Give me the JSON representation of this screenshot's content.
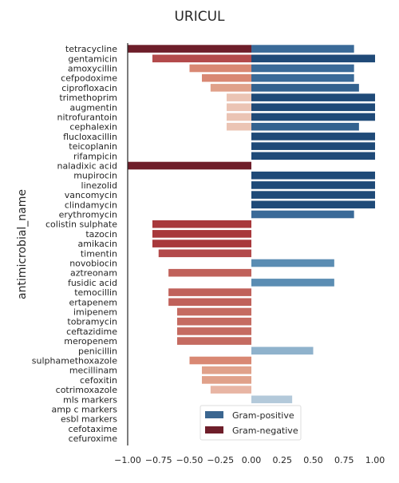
{
  "chart_data": {
    "type": "bar",
    "orientation": "horizontal",
    "title": "URICUL",
    "xlabel": "",
    "ylabel": "antimicrobial_name",
    "xlim": [
      -1.0,
      1.0
    ],
    "x_ticks": [
      "−1.00",
      "−0.75",
      "−0.50",
      "−0.25",
      "0.00",
      "0.25",
      "0.50",
      "0.75",
      "1.00"
    ],
    "x_tick_values": [
      -1.0,
      -0.75,
      -0.5,
      -0.25,
      0.0,
      0.25,
      0.5,
      0.75,
      1.0
    ],
    "grid": false,
    "legend_position": "lower-center",
    "legend": [
      {
        "label": "Gram-positive",
        "color": "#3b6690"
      },
      {
        "label": "Gram-negative",
        "color": "#6e1e2a"
      }
    ],
    "categories": [
      "tetracycline",
      "gentamicin",
      "amoxycillin",
      "cefpodoxime",
      "ciprofloxacin",
      "trimethoprim",
      "augmentin",
      "nitrofurantoin",
      "cephalexin",
      "flucloxacillin",
      "teicoplanin",
      "rifampicin",
      "naladixic acid",
      "mupirocin",
      "linezolid",
      "vancomycin",
      "clindamycin",
      "erythromycin",
      "colistin sulphate",
      "tazocin",
      "amikacin",
      "timentin",
      "novobiocin",
      "aztreonam",
      "fusidic acid",
      "temocillin",
      "ertapenem",
      "imipenem",
      "tobramycin",
      "ceftazidime",
      "meropenem",
      "penicillin",
      "sulphamethoxazole",
      "mecillinam",
      "cefoxitin",
      "cotrimoxazole",
      "mls markers",
      "amp c markers",
      "esbl markers",
      "cefotaxime",
      "cefuroxime"
    ],
    "series": [
      {
        "name": "Gram-positive",
        "values": [
          0.83,
          1.0,
          0.83,
          0.83,
          0.87,
          1.0,
          1.0,
          1.0,
          0.87,
          1.0,
          1.0,
          1.0,
          null,
          1.0,
          1.0,
          1.0,
          1.0,
          0.83,
          null,
          null,
          null,
          null,
          0.67,
          null,
          0.67,
          null,
          null,
          null,
          null,
          null,
          null,
          0.5,
          null,
          null,
          null,
          null,
          0.33,
          null,
          null,
          null,
          null
        ],
        "colors": [
          "#3a6a98",
          "#1f4a78",
          "#3a6a98",
          "#3a6a98",
          "#33628f",
          "#1f4a78",
          "#1f4a78",
          "#1f4a78",
          "#33628f",
          "#1f4a78",
          "#1f4a78",
          "#1f4a78",
          null,
          "#1f4a78",
          "#1f4a78",
          "#1f4a78",
          "#1f4a78",
          "#3a6a98",
          null,
          null,
          null,
          null,
          "#5b8db3",
          null,
          "#5b8db3",
          null,
          null,
          null,
          null,
          null,
          null,
          "#8fb2cc",
          null,
          null,
          null,
          null,
          "#b3c9da",
          null,
          null,
          null,
          null
        ]
      },
      {
        "name": "Gram-negative",
        "values": [
          -1.0,
          -0.8,
          -0.5,
          -0.4,
          -0.33,
          -0.2,
          -0.2,
          -0.2,
          -0.2,
          null,
          null,
          null,
          -1.0,
          null,
          null,
          null,
          null,
          null,
          -0.8,
          -0.8,
          -0.8,
          -0.75,
          null,
          -0.67,
          null,
          -0.67,
          -0.67,
          -0.6,
          -0.6,
          -0.6,
          -0.6,
          null,
          -0.5,
          -0.4,
          -0.4,
          -0.33,
          null,
          null,
          null,
          null,
          null
        ],
        "colors": [
          "#6e1e2a",
          "#b34a4b",
          "#d98873",
          "#d98873",
          "#e0a18a",
          "#ebc4b4",
          "#ebc4b4",
          "#ebc4b4",
          "#ebc4b4",
          null,
          null,
          null,
          "#6e1e2a",
          null,
          null,
          null,
          null,
          null,
          "#a8383b",
          "#a8383b",
          "#a8383b",
          "#b34a4b",
          null,
          "#c0615a",
          null,
          "#c0615a",
          "#c0615a",
          "#c56b61",
          "#c56b61",
          "#c56b61",
          "#c56b61",
          null,
          "#d98873",
          "#e0a18a",
          "#e0a18a",
          "#e8b5a4",
          null,
          null,
          null,
          null,
          null
        ]
      }
    ]
  }
}
